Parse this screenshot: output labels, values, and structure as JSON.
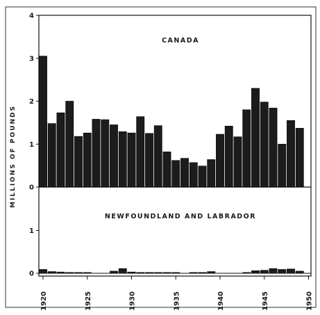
{
  "chart_data": {
    "type": "bar",
    "ylabel": "MILLIONS OF POUNDS",
    "x": [
      1920,
      1921,
      1922,
      1923,
      1924,
      1925,
      1926,
      1927,
      1928,
      1929,
      1930,
      1931,
      1932,
      1933,
      1934,
      1935,
      1936,
      1937,
      1938,
      1939,
      1940,
      1941,
      1942,
      1943,
      1944,
      1945,
      1946,
      1947,
      1948,
      1949
    ],
    "xticks": [
      "1920",
      "1925",
      "1930",
      "1935",
      "1940",
      "1945",
      "1950"
    ],
    "panels": [
      {
        "title": "CANADA",
        "ylim": [
          0,
          4
        ],
        "yticks": [
          "0",
          "1",
          "2",
          "3",
          "4"
        ],
        "values": [
          3.05,
          1.48,
          1.73,
          2.0,
          1.18,
          1.26,
          1.58,
          1.57,
          1.45,
          1.29,
          1.26,
          1.64,
          1.25,
          1.43,
          0.82,
          0.62,
          0.67,
          0.57,
          0.49,
          0.64,
          1.23,
          1.42,
          1.17,
          1.8,
          2.3,
          1.98,
          1.84,
          1.0,
          1.55,
          1.37
        ]
      },
      {
        "title": "NEWFOUNDLAND AND LABRADOR",
        "ylim": [
          0,
          2
        ],
        "yticks": [
          "0",
          "1"
        ],
        "values": [
          0.09,
          0.04,
          0.03,
          0.02,
          0.01,
          0.01,
          0.0,
          0.0,
          0.05,
          0.11,
          0.03,
          0.02,
          0.02,
          0.01,
          0.01,
          0.01,
          0.0,
          0.01,
          0.02,
          0.04,
          0.0,
          0.0,
          0.0,
          0.01,
          0.06,
          0.07,
          0.11,
          0.09,
          0.1,
          0.05
        ]
      }
    ]
  }
}
